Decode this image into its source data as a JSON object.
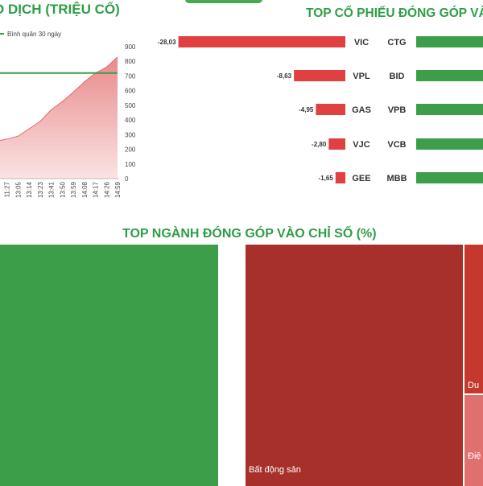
{
  "titles": {
    "volume": "O DỊCH (TRIỆU CỔ)",
    "top_stocks": "TOP CỔ PHIẾU ĐÓNG GÓP VÀ",
    "industries": "TOP NGÀNH ĐÓNG GÓP VÀO CHỈ SỐ (%)"
  },
  "colors": {
    "green": "#3d9e4a",
    "red": "#e04040",
    "dark_red": "#a8302a",
    "area_fill": "#e88a8a",
    "title_green": "#2e9e47"
  },
  "chart_data": [
    {
      "type": "area",
      "title": "O DỊCH (TRIỆU CỔ)",
      "legend": {
        "label": "Bình quân 30 ngày",
        "position": "top-left"
      },
      "x": [
        "11:18",
        "11:27",
        "13:05",
        "13:14",
        "13:23",
        "13:41",
        "13:50",
        "13:59",
        "14:08",
        "14:17",
        "14:26",
        "14:59"
      ],
      "y_ticks": [
        0,
        100,
        200,
        300,
        400,
        500,
        600,
        700,
        800,
        900
      ],
      "ylim": [
        0,
        900
      ],
      "series": [
        {
          "values": [
            255,
            270,
            290,
            340,
            390,
            470,
            525,
            590,
            660,
            720,
            760,
            830
          ]
        }
      ],
      "reference_line": {
        "name": "Bình quân 30 ngày",
        "value": 720
      }
    },
    {
      "type": "bar",
      "title": "TOP CỔ PHIẾU ĐÓNG GÓP VÀ",
      "negative": [
        {
          "ticker": "VIC",
          "value": -28.03,
          "label": "-28,03"
        },
        {
          "ticker": "VPL",
          "value": -8.63,
          "label": "-8,63"
        },
        {
          "ticker": "GAS",
          "value": -4.95,
          "label": "-4,95"
        },
        {
          "ticker": "VJC",
          "value": -2.8,
          "label": "-2,80"
        },
        {
          "ticker": "GEE",
          "value": -1.65,
          "label": "-1,65"
        }
      ],
      "positive": [
        {
          "ticker": "CTG"
        },
        {
          "ticker": "BID"
        },
        {
          "ticker": "VPB"
        },
        {
          "ticker": "VCB"
        },
        {
          "ticker": "MBB"
        }
      ]
    },
    {
      "type": "treemap",
      "title": "TOP NGÀNH ĐÓNG GÓP VÀO CHỈ SỐ (%)",
      "tiles": [
        {
          "label": "",
          "sign": "positive"
        },
        {
          "label": "Bất động sản",
          "sign": "negative"
        },
        {
          "label": "Du",
          "sign": "negative"
        },
        {
          "label": "Điệ",
          "sign": "negative"
        }
      ]
    }
  ]
}
